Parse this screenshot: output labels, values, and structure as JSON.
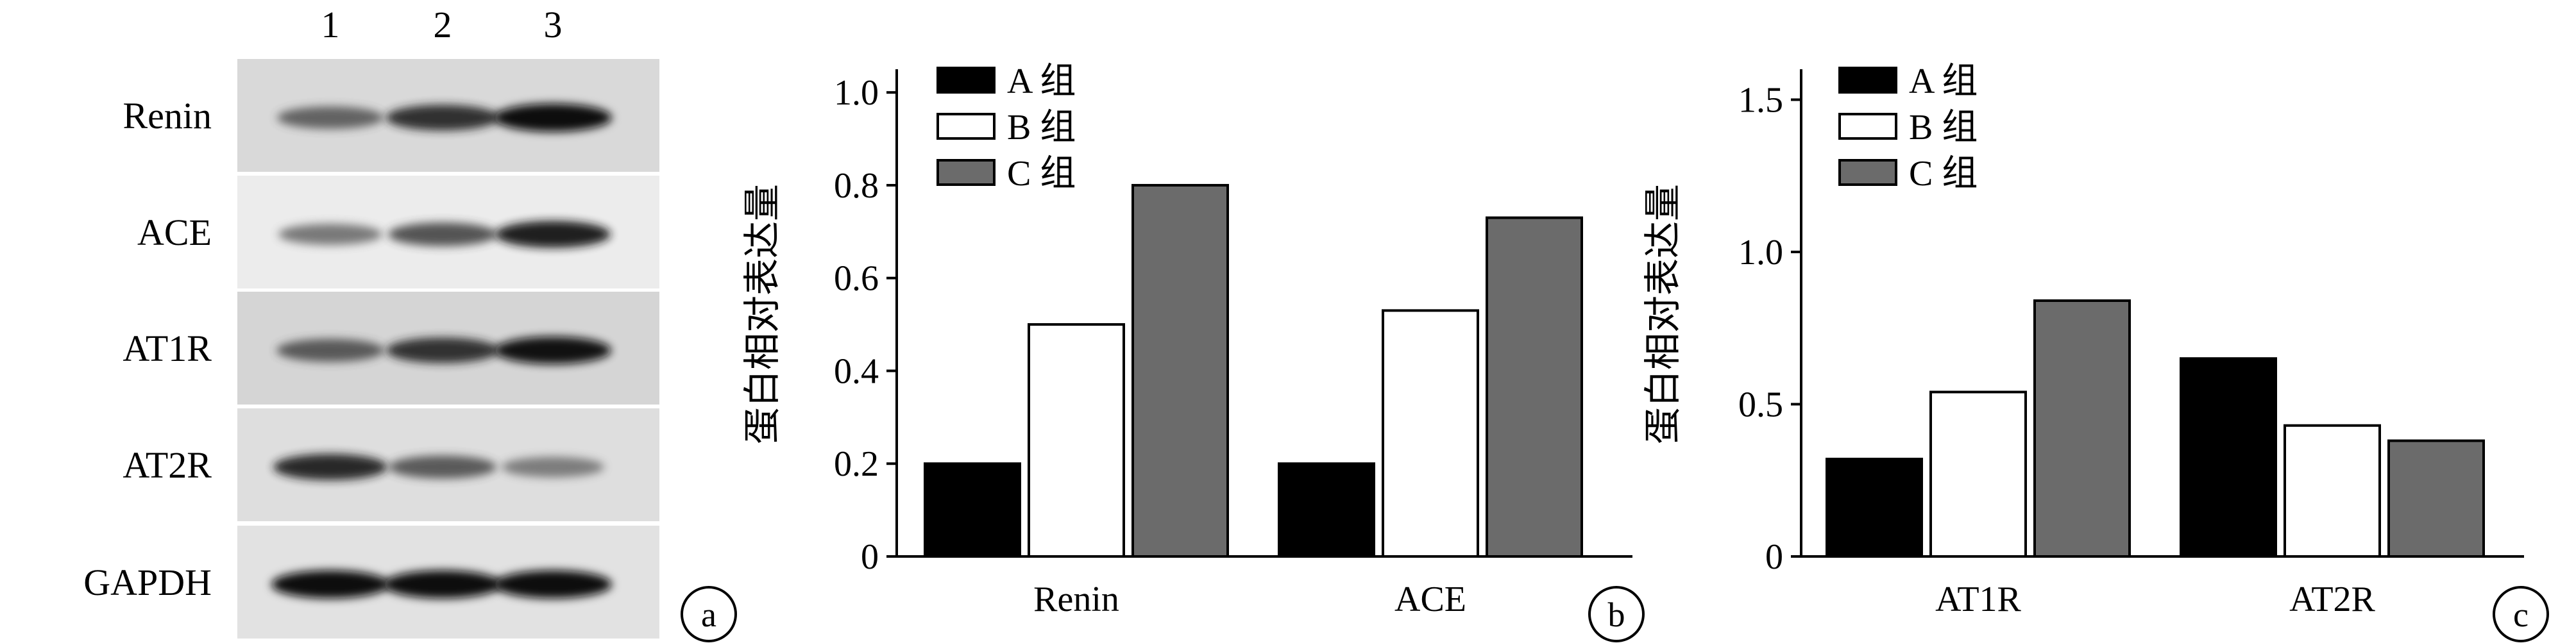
{
  "panel_a": {
    "lanes": [
      "1",
      "2",
      "3"
    ],
    "rows": [
      {
        "label": "Renin",
        "intensity": [
          0.55,
          0.82,
          1.0
        ]
      },
      {
        "label": "ACE",
        "intensity": [
          0.45,
          0.65,
          0.9
        ]
      },
      {
        "label": "AT1R",
        "intensity": [
          0.6,
          0.8,
          0.95
        ]
      },
      {
        "label": "AT2R",
        "intensity": [
          0.85,
          0.6,
          0.4
        ]
      },
      {
        "label": "GAPDH",
        "intensity": [
          1.0,
          1.0,
          1.0
        ]
      }
    ],
    "tag": "a"
  },
  "legend_items": [
    {
      "label": "A 组",
      "color": "#000000"
    },
    {
      "label": "B 组",
      "color": "#ffffff"
    },
    {
      "label": "C 组",
      "color": "#6b6b6b"
    }
  ],
  "chart_data": [
    {
      "type": "bar",
      "tag": "b",
      "ylabel": "蛋白相对表达量",
      "categories": [
        "Renin",
        "ACE"
      ],
      "series": [
        {
          "name": "A 组",
          "values": [
            0.2,
            0.2
          ]
        },
        {
          "name": "B 组",
          "values": [
            0.5,
            0.53
          ]
        },
        {
          "name": "C 组",
          "values": [
            0.8,
            0.73
          ]
        }
      ],
      "ylim": [
        0,
        1.05
      ],
      "yticks": [
        "0",
        "0.2",
        "0.4",
        "0.6",
        "0.8",
        "1.0"
      ],
      "ytick_values": [
        0,
        0.2,
        0.4,
        0.6,
        0.8,
        1.0
      ],
      "legend": "top-left",
      "grid": false
    },
    {
      "type": "bar",
      "tag": "c",
      "ylabel": "蛋白相对表达量",
      "categories": [
        "AT1R",
        "AT2R"
      ],
      "series": [
        {
          "name": "A 组",
          "values": [
            0.32,
            0.65
          ]
        },
        {
          "name": "B 组",
          "values": [
            0.54,
            0.43
          ]
        },
        {
          "name": "C 组",
          "values": [
            0.84,
            0.38
          ]
        }
      ],
      "ylim": [
        0,
        1.6
      ],
      "yticks": [
        "0",
        "0.5",
        "1.0",
        "1.5"
      ],
      "ytick_values": [
        0,
        0.5,
        1.0,
        1.5
      ],
      "legend": "top-left",
      "grid": false
    }
  ]
}
